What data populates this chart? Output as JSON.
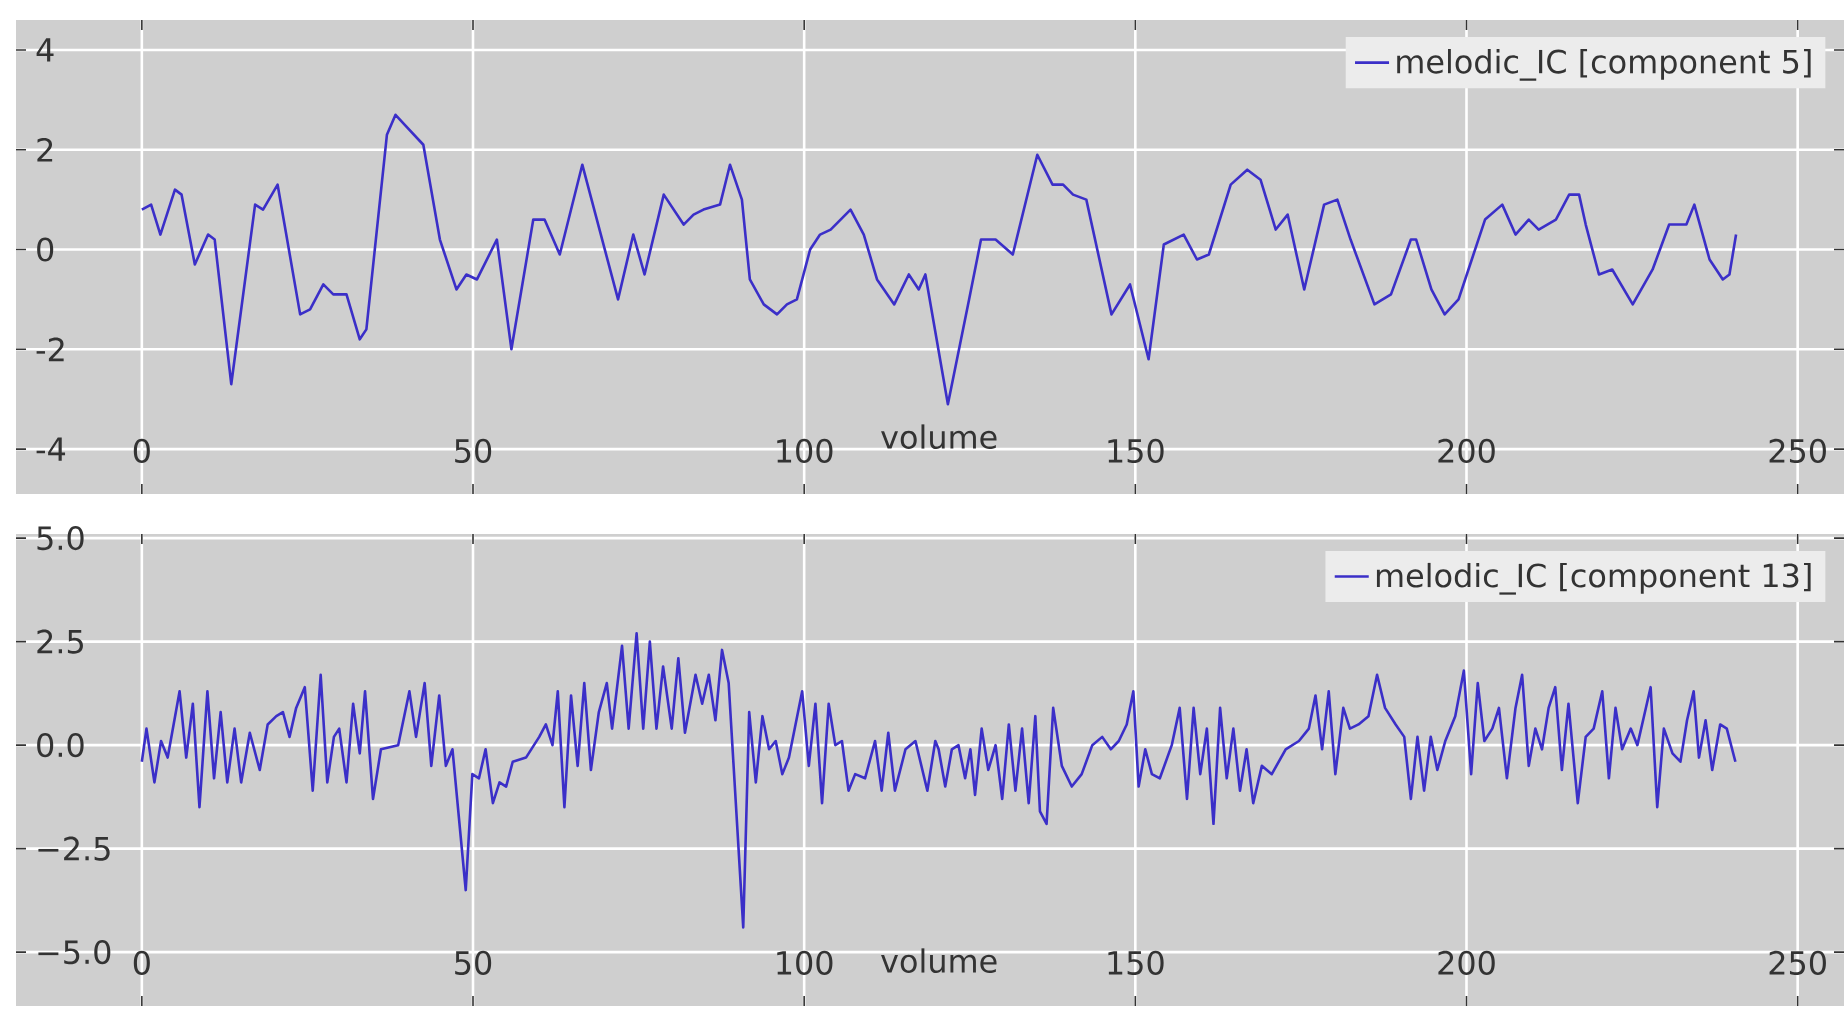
{
  "chart_data": [
    {
      "type": "line",
      "xlabel": "volume",
      "xlim": [
        -19,
        257
      ],
      "ylim": [
        -4.9,
        4.6
      ],
      "xticks": [
        0,
        50,
        100,
        150,
        200,
        250
      ],
      "yticks": [
        -4,
        -2,
        0,
        2,
        4
      ],
      "grid": true,
      "legend": "top right",
      "series": [
        {
          "name": "melodic_IC [component 5]",
          "color": "#3b2fc8",
          "x": [
            0,
            1.4,
            2.8,
            5,
            6,
            8,
            10,
            11,
            13.5,
            17.1,
            18.3,
            20.5,
            23.9,
            25.4,
            27.4,
            28.9,
            30.9,
            32.9,
            33.9,
            37,
            38.3,
            39.7,
            42.5,
            45,
            47.5,
            49,
            50.6,
            53.6,
            55.8,
            59.1,
            60.8,
            63.1,
            66.5,
            71.9,
            74.2,
            75.9,
            78.8,
            81.8,
            83.3,
            84.8,
            87.3,
            88.8,
            90.6,
            91.8,
            93.9,
            95.9,
            97.4,
            98.9,
            100.9,
            102.4,
            104,
            107,
            109,
            111,
            113.6,
            115.8,
            117.3,
            118.3,
            121.7,
            124.9,
            126.7,
            128.9,
            131.5,
            135.2,
            137.5,
            139.1,
            140.6,
            142.6,
            146.4,
            149.2,
            152,
            154.3,
            157.3,
            159.3,
            161.1,
            164.4,
            166.9,
            168.9,
            171.2,
            173,
            175.5,
            178.5,
            180.5,
            182.5,
            186.1,
            188.6,
            191.6,
            192.4,
            194.7,
            196.7,
            198.8,
            200.8,
            202.8,
            205.4,
            207.4,
            209.4,
            210.9,
            213.5,
            215.5,
            217,
            218,
            220,
            222,
            225.1,
            228.1,
            230.6,
            233.2,
            234.4,
            236.7,
            238.7,
            239.7,
            240.7
          ],
          "values": [
            0.8,
            0.9,
            0.3,
            1.2,
            1.1,
            -0.3,
            0.3,
            0.2,
            -2.7,
            0.9,
            0.8,
            1.3,
            -1.3,
            -1.2,
            -0.7,
            -0.9,
            -0.9,
            -1.8,
            -1.6,
            2.3,
            2.7,
            2.5,
            2.1,
            0.2,
            -0.8,
            -0.5,
            -0.6,
            0.2,
            -2.0,
            0.6,
            0.6,
            -0.1,
            1.7,
            -1.0,
            0.3,
            -0.5,
            1.1,
            0.5,
            0.7,
            0.8,
            0.9,
            1.7,
            1.0,
            -0.6,
            -1.1,
            -1.3,
            -1.1,
            -1.0,
            0.0,
            0.3,
            0.4,
            0.8,
            0.3,
            -0.6,
            -1.1,
            -0.5,
            -0.8,
            -0.5,
            -3.1,
            -1.0,
            0.2,
            0.2,
            -0.1,
            1.9,
            1.3,
            1.3,
            1.1,
            1.0,
            -1.3,
            -0.7,
            -2.2,
            0.1,
            0.3,
            -0.2,
            -0.1,
            1.3,
            1.6,
            1.4,
            0.4,
            0.7,
            -0.8,
            0.9,
            1.0,
            0.2,
            -1.1,
            -0.9,
            0.2,
            0.2,
            -0.8,
            -1.3,
            -1.0,
            -0.2,
            0.6,
            0.9,
            0.3,
            0.6,
            0.4,
            0.6,
            1.1,
            1.1,
            0.5,
            -0.5,
            -0.4,
            -1.1,
            -0.4,
            0.5,
            0.5,
            0.9,
            -0.2,
            -0.6,
            -0.5,
            0.3
          ]
        }
      ]
    },
    {
      "type": "line",
      "xlabel": "volume",
      "xlim": [
        -19,
        257
      ],
      "ylim": [
        -6.3,
        5.1
      ],
      "xticks": [
        0,
        50,
        100,
        150,
        200,
        250
      ],
      "yticks": [
        {
          "value": -5,
          "label": "−5.0"
        },
        {
          "value": -2.5,
          "label": "−2.5"
        },
        {
          "value": 0,
          "label": "0.0"
        },
        {
          "value": 2.5,
          "label": "2.5"
        },
        {
          "value": 5,
          "label": "5.0"
        }
      ],
      "grid": true,
      "legend": "top right",
      "series": [
        {
          "name": "melodic_IC [component 13]",
          "color": "#3b2fc8",
          "x": [
            0,
            0.7,
            1.9,
            2.9,
            3.9,
            5.7,
            6.7,
            7.7,
            8.7,
            9.9,
            10.9,
            11.9,
            12.9,
            14,
            15,
            16.3,
            17.8,
            19,
            20.3,
            21.3,
            22.3,
            23.3,
            24.6,
            25.8,
            27,
            28,
            29,
            29.8,
            30.9,
            31.9,
            32.9,
            33.7,
            34.9,
            36.1,
            38.7,
            40.4,
            41.4,
            42.7,
            43.7,
            44.9,
            45.9,
            46.9,
            48.9,
            49.9,
            50.9,
            51.9,
            53,
            54,
            55,
            56,
            58,
            60,
            61,
            62,
            62.8,
            63.8,
            64.8,
            65.8,
            66.8,
            67.8,
            69,
            70.2,
            71,
            72.5,
            73.5,
            74.7,
            75.7,
            76.7,
            77.7,
            78.7,
            80,
            81,
            82,
            83.6,
            84.6,
            85.6,
            86.6,
            87.6,
            88.6,
            90.8,
            91.7,
            92.7,
            93.7,
            94.7,
            95.7,
            96.7,
            97.7,
            99.7,
            100.7,
            101.7,
            102.7,
            103.7,
            104.7,
            105.7,
            106.7,
            107.7,
            109.2,
            110.7,
            111.7,
            112.7,
            113.7,
            115.3,
            116.8,
            118.6,
            119.8,
            120.3,
            121.3,
            122.3,
            123.3,
            124.3,
            125.1,
            125.8,
            126.8,
            127.8,
            128.9,
            129.9,
            130.9,
            131.9,
            132.9,
            133.9,
            134.9,
            135.6,
            136.6,
            137.6,
            138.9,
            140.4,
            141.9,
            143.5,
            145,
            146.3,
            147.5,
            148.7,
            149.7,
            150.5,
            151.5,
            152.5,
            153.7,
            155.5,
            156.7,
            157.8,
            158.8,
            159.8,
            160.8,
            161.8,
            162.8,
            163.8,
            164.8,
            165.8,
            166.8,
            167.8,
            169.1,
            170.6,
            172.7,
            174.7,
            176.2,
            177.2,
            178.2,
            179.2,
            180.2,
            181.4,
            182.4,
            183.7,
            185.2,
            186.5,
            187.7,
            189.3,
            190.6,
            191.6,
            192.6,
            193.6,
            194.6,
            195.6,
            196.8,
            198.3,
            199.6,
            200.7,
            201.7,
            202.7,
            203.9,
            204.9,
            206.1,
            207.4,
            208.4,
            209.4,
            210.4,
            211.4,
            212.4,
            213.4,
            214.4,
            215.4,
            216.8,
            218,
            219.2,
            220.5,
            221.5,
            222.5,
            223.5,
            224.8,
            225.8,
            226.8,
            227.8,
            228.8,
            229.8,
            231.1,
            232.3,
            233.3,
            234.3,
            235.1,
            236.1,
            237.1,
            238.3,
            239.3,
            240.6
          ],
          "values": [
            -0.4,
            0.4,
            -0.9,
            0.1,
            -0.3,
            1.3,
            -0.3,
            1.0,
            -1.5,
            1.3,
            -0.8,
            0.8,
            -0.9,
            0.4,
            -0.9,
            0.3,
            -0.6,
            0.5,
            0.7,
            0.8,
            0.2,
            0.9,
            1.4,
            -1.1,
            1.7,
            -0.9,
            0.2,
            0.4,
            -0.9,
            1.0,
            -0.2,
            1.3,
            -1.3,
            -0.1,
            0.0,
            1.3,
            0.2,
            1.5,
            -0.5,
            1.2,
            -0.5,
            -0.1,
            -3.5,
            -0.7,
            -0.8,
            -0.1,
            -1.4,
            -0.9,
            -1.0,
            -0.4,
            -0.3,
            0.2,
            0.5,
            0.0,
            1.3,
            -1.5,
            1.2,
            -0.5,
            1.5,
            -0.6,
            0.8,
            1.5,
            0.4,
            2.4,
            0.4,
            2.7,
            0.4,
            2.5,
            0.4,
            1.9,
            0.4,
            2.1,
            0.3,
            1.7,
            1.0,
            1.7,
            0.6,
            2.3,
            1.5,
            -4.4,
            0.8,
            -0.9,
            0.7,
            -0.1,
            0.1,
            -0.7,
            -0.3,
            1.3,
            -0.5,
            1.0,
            -1.4,
            1.0,
            0.0,
            0.1,
            -1.1,
            -0.7,
            -0.8,
            0.1,
            -1.1,
            0.3,
            -1.1,
            -0.1,
            0.1,
            -1.1,
            0.1,
            -0.1,
            -1.0,
            -0.1,
            0.0,
            -0.8,
            -0.1,
            -1.2,
            0.4,
            -0.6,
            0.0,
            -1.3,
            0.5,
            -1.1,
            0.4,
            -1.4,
            0.7,
            -1.6,
            -1.9,
            0.9,
            -0.5,
            -1.0,
            -0.7,
            0.0,
            0.2,
            -0.1,
            0.1,
            0.5,
            1.3,
            -1.0,
            -0.1,
            -0.7,
            -0.8,
            0.0,
            0.9,
            -1.3,
            0.9,
            -0.7,
            0.4,
            -1.9,
            0.9,
            -0.8,
            0.4,
            -1.1,
            -0.1,
            -1.4,
            -0.5,
            -0.7,
            -0.1,
            0.1,
            0.4,
            1.2,
            -0.1,
            1.3,
            -0.7,
            0.9,
            0.4,
            0.5,
            0.7,
            1.7,
            0.9,
            0.5,
            0.2,
            -1.3,
            0.2,
            -1.1,
            0.2,
            -0.6,
            0.1,
            0.7,
            1.8,
            -0.7,
            1.5,
            0.1,
            0.4,
            0.9,
            -0.8,
            0.9,
            1.7,
            -0.5,
            0.4,
            -0.1,
            0.9,
            1.4,
            -0.6,
            1.0,
            -1.4,
            0.2,
            0.4,
            1.3,
            -0.8,
            0.9,
            -0.1,
            0.4,
            0.0,
            0.7,
            1.4,
            -1.5,
            0.4,
            -0.2,
            -0.4,
            0.6,
            1.3,
            -0.3,
            0.6,
            -0.6,
            0.5,
            0.4,
            -0.4
          ]
        }
      ]
    }
  ]
}
